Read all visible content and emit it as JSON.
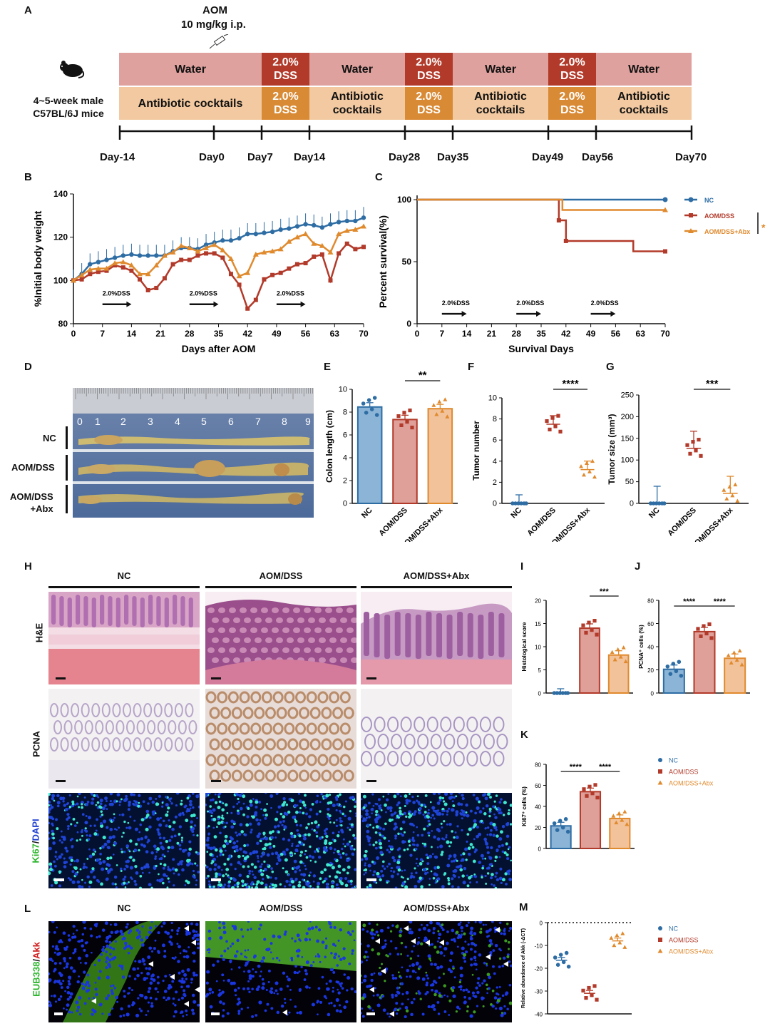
{
  "panels": {
    "A": "A",
    "B": "B",
    "C": "C",
    "D": "D",
    "E": "E",
    "F": "F",
    "G": "G",
    "H": "H",
    "I": "I",
    "J": "J",
    "K": "K",
    "L": "L",
    "M": "M"
  },
  "panelA": {
    "aom_title": "AOM",
    "aom_dose": "10 mg/kg i.p.",
    "mice_label_1": "4~5-week male",
    "mice_label_2": "C57BL/6J  mice",
    "row1": [
      "Water",
      "2.0%\nDSS",
      "Water",
      "2.0%\nDSS",
      "Water",
      "2.0%\nDSS",
      "Water"
    ],
    "row2": [
      "Antibiotic cocktails",
      "2.0%\nDSS",
      "Antibiotic\ncocktails",
      "2.0%\nDSS",
      "Antibiotic\ncocktails",
      "2.0%\nDSS",
      "Antibiotic\ncocktails"
    ],
    "days": [
      "Day-14",
      "Day0",
      "Day7",
      "Day14",
      "Day28",
      "Day35",
      "Day49",
      "Day56",
      "Day70"
    ],
    "colors": {
      "water": "#dea19d",
      "dss_red": "#b23a2a",
      "abx": "#f2c9a0",
      "dss_orange": "#d98a35"
    }
  },
  "chart_data": [
    {
      "panel": "B",
      "type": "line",
      "xlabel": "Days after AOM",
      "ylabel": "%Initial body weight",
      "xlim": [
        0,
        70
      ],
      "ylim": [
        80,
        140
      ],
      "xticks": [
        0,
        7,
        14,
        21,
        28,
        35,
        42,
        49,
        56,
        63,
        70
      ],
      "yticks": [
        80,
        100,
        120,
        140
      ],
      "annotations": [
        "2.0%DSS",
        "2.0%DSS",
        "2.0%DSS"
      ],
      "x": [
        0,
        2,
        4,
        6,
        8,
        10,
        12,
        14,
        16,
        18,
        20,
        22,
        24,
        26,
        28,
        30,
        32,
        34,
        36,
        38,
        40,
        42,
        44,
        46,
        48,
        50,
        52,
        54,
        56,
        58,
        60,
        62,
        64,
        66,
        68,
        70
      ],
      "series": [
        {
          "name": "NC",
          "color": "#2e6da4",
          "values": [
            100,
            103,
            107.5,
            108.5,
            109.5,
            110.5,
            111.5,
            112,
            111.5,
            111.5,
            111.5,
            111.5,
            113.5,
            115,
            115,
            114.5,
            116.5,
            117.5,
            118.5,
            118.5,
            119.5,
            121.5,
            121.5,
            122,
            122.5,
            123.5,
            124,
            125,
            126,
            125.5,
            124.5,
            126,
            127,
            127.5,
            127.5,
            129
          ]
        },
        {
          "name": "AOM/DSS",
          "color": "#b23a2a",
          "values": [
            100,
            100.5,
            103,
            104,
            104.5,
            107,
            106,
            104.5,
            100.5,
            95.5,
            96.5,
            101,
            107.5,
            109.5,
            109.5,
            111.5,
            112.5,
            112.5,
            110.5,
            103,
            98,
            87,
            91,
            100.5,
            102.5,
            103.5,
            105.5,
            107.5,
            108,
            111,
            112,
            100,
            112.5,
            117,
            114.5,
            115.5
          ]
        },
        {
          "name": "AOM/DSS+Abx",
          "color": "#e08a2e",
          "values": [
            100,
            102.5,
            105,
            105.5,
            105.5,
            108,
            108.5,
            107,
            103,
            103,
            107,
            111.5,
            113,
            116,
            115,
            113.5,
            115,
            116.5,
            114,
            110,
            102,
            103.5,
            112,
            113,
            113.5,
            114.5,
            118,
            120,
            121.5,
            117,
            116,
            113,
            121.5,
            123,
            123.5,
            125
          ]
        }
      ]
    },
    {
      "panel": "C",
      "type": "line",
      "xlabel": "Survival Days",
      "ylabel": "Percent survival(%)",
      "xlim": [
        0,
        70
      ],
      "ylim": [
        0,
        100
      ],
      "xticks": [
        0,
        7,
        14,
        21,
        28,
        35,
        42,
        49,
        56,
        63,
        70
      ],
      "yticks": [
        0,
        50,
        100
      ],
      "annotations": [
        "2.0%DSS",
        "2.0%DSS",
        "2.0%DSS",
        "*"
      ],
      "legend": [
        "NC",
        "AOM/DSS",
        "AOM/DSS+Abx"
      ],
      "series": [
        {
          "name": "NC",
          "color": "#2e6da4",
          "points": [
            [
              0,
              100
            ],
            [
              70,
              100
            ]
          ]
        },
        {
          "name": "AOM/DSS",
          "color": "#b23a2a",
          "points": [
            [
              0,
              100
            ],
            [
              40,
              100
            ],
            [
              40,
              83.3
            ],
            [
              42,
              83.3
            ],
            [
              42,
              66.7
            ],
            [
              61,
              66.7
            ],
            [
              61,
              58.3
            ],
            [
              70,
              58.3
            ]
          ]
        },
        {
          "name": "AOM/DSS+Abx",
          "color": "#e08a2e",
          "points": [
            [
              0,
              100
            ],
            [
              41,
              100
            ],
            [
              41,
              91.7
            ],
            [
              70,
              91.7
            ]
          ]
        }
      ]
    },
    {
      "panel": "E",
      "type": "bar",
      "ylabel": "Colon length (cm)",
      "ylim": [
        0,
        10
      ],
      "yticks": [
        0,
        2,
        4,
        6,
        8,
        10
      ],
      "categories": [
        "NC",
        "AOM/DSS",
        "AOM/DSS+Abx"
      ],
      "values": [
        8.45,
        7.35,
        8.3
      ],
      "significance": [
        "**"
      ]
    },
    {
      "panel": "F",
      "type": "scatter",
      "ylabel": "Tumor number",
      "ylim": [
        0,
        10
      ],
      "yticks": [
        0,
        2,
        4,
        6,
        8,
        10
      ],
      "categories": [
        "NC",
        "AOM/DSS",
        "AOM/DSS+Abx"
      ],
      "values": [
        0,
        7.5,
        3.2
      ],
      "significance": [
        "****"
      ]
    },
    {
      "panel": "G",
      "type": "scatter",
      "ylabel": "Tumor size (mm³)",
      "ylim": [
        0,
        250
      ],
      "yticks": [
        0,
        50,
        100,
        150,
        200,
        250
      ],
      "categories": [
        "NC",
        "AOM/DSS",
        "AOM/DSS+Abx"
      ],
      "values": [
        0,
        127,
        23
      ],
      "significance": [
        "***"
      ]
    },
    {
      "panel": "I",
      "type": "bar",
      "ylabel": "Histological score",
      "ylim": [
        0,
        20
      ],
      "yticks": [
        0,
        5,
        10,
        15,
        20
      ],
      "categories": [
        "NC",
        "AOM/DSS",
        "AOM/DSS+Abx"
      ],
      "values": [
        0,
        14,
        8.2
      ],
      "significance": [
        "***"
      ]
    },
    {
      "panel": "J",
      "type": "bar",
      "ylabel": "PCNA⁺ cells (%)",
      "ylim": [
        0,
        80
      ],
      "yticks": [
        0,
        20,
        40,
        60,
        80
      ],
      "categories": [
        "NC",
        "AOM/DSS",
        "AOM/DSS+Abx"
      ],
      "values": [
        20.5,
        53,
        30
      ],
      "significance": [
        "****",
        "****"
      ]
    },
    {
      "panel": "K",
      "type": "bar",
      "ylabel": "Ki67⁺ cells (%)",
      "ylim": [
        0,
        80
      ],
      "yticks": [
        0,
        20,
        40,
        60,
        80
      ],
      "categories": [
        "NC",
        "AOM/DSS",
        "AOM/DSS+Abx"
      ],
      "values": [
        21.5,
        54,
        28.5
      ],
      "significance": [
        "****",
        "****"
      ],
      "legend": [
        "NC",
        "AOM/DSS",
        "AOM/DSS+Abx"
      ]
    },
    {
      "panel": "M",
      "type": "scatter",
      "ylabel": "Relative abundance of Akk (-ΔCT)",
      "ylim": [
        -40,
        0
      ],
      "yticks": [
        0,
        -10,
        -20,
        -30,
        -40
      ],
      "categories": [
        "NC",
        "AOM/DSS",
        "AOM/DSS+Abx"
      ],
      "values": [
        -16.5,
        -31,
        -8
      ],
      "significance": [
        "****",
        "****",
        "****"
      ],
      "legend": [
        "NC",
        "AOM/DSS",
        "AOM/DSS+Abx"
      ]
    }
  ],
  "panelD": {
    "rows": [
      "NC",
      "AOM/DSS",
      "AOM/DSS\n+Abx"
    ],
    "ruler": [
      "0",
      "1",
      "2",
      "3",
      "4",
      "5",
      "6",
      "7",
      "8",
      "9"
    ]
  },
  "panelH": {
    "groups": [
      "NC",
      "AOM/DSS",
      "AOM/DSS+Abx"
    ],
    "rows": [
      "H&E",
      "PCNA"
    ],
    "ki67": "Ki67",
    "dapi": "DAPI"
  },
  "panelL": {
    "groups": [
      "NC",
      "AOM/DSS",
      "AOM/DSS+Abx"
    ],
    "eub": "EUB338",
    "akk": "Akk"
  }
}
